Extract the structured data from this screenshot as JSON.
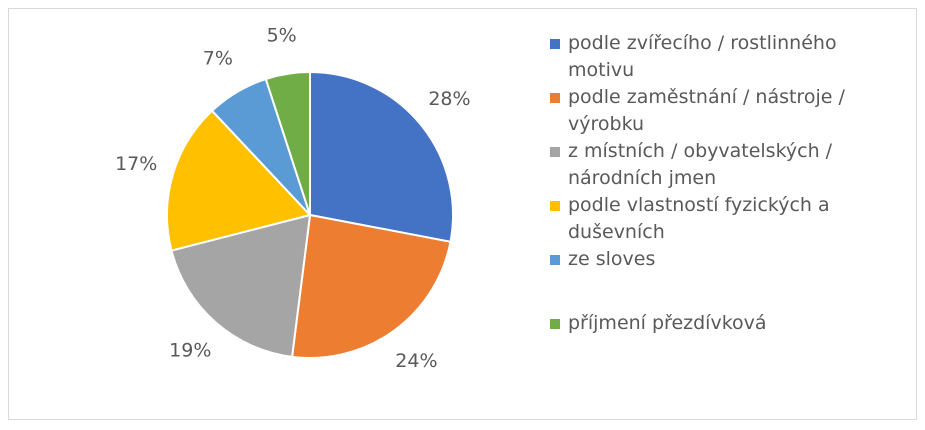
{
  "chart_data": {
    "type": "pie",
    "categories": [
      "podle zvířecího / rostlinného motivu",
      "podle zaměstnání / nástroje / výrobku",
      "z místních / obyvatelských / národních jmen",
      "podle vlastností fyzických a duševních",
      "ze sloves",
      "příjmení přezdívková"
    ],
    "values": [
      28,
      24,
      19,
      17,
      7,
      5
    ],
    "value_labels": [
      "28%",
      "24%",
      "19%",
      "17%",
      "7%",
      "5%"
    ],
    "colors": [
      "#4472c4",
      "#ed7d31",
      "#a5a5a5",
      "#ffc000",
      "#5b9bd5",
      "#70ad47"
    ],
    "legend": "right"
  }
}
